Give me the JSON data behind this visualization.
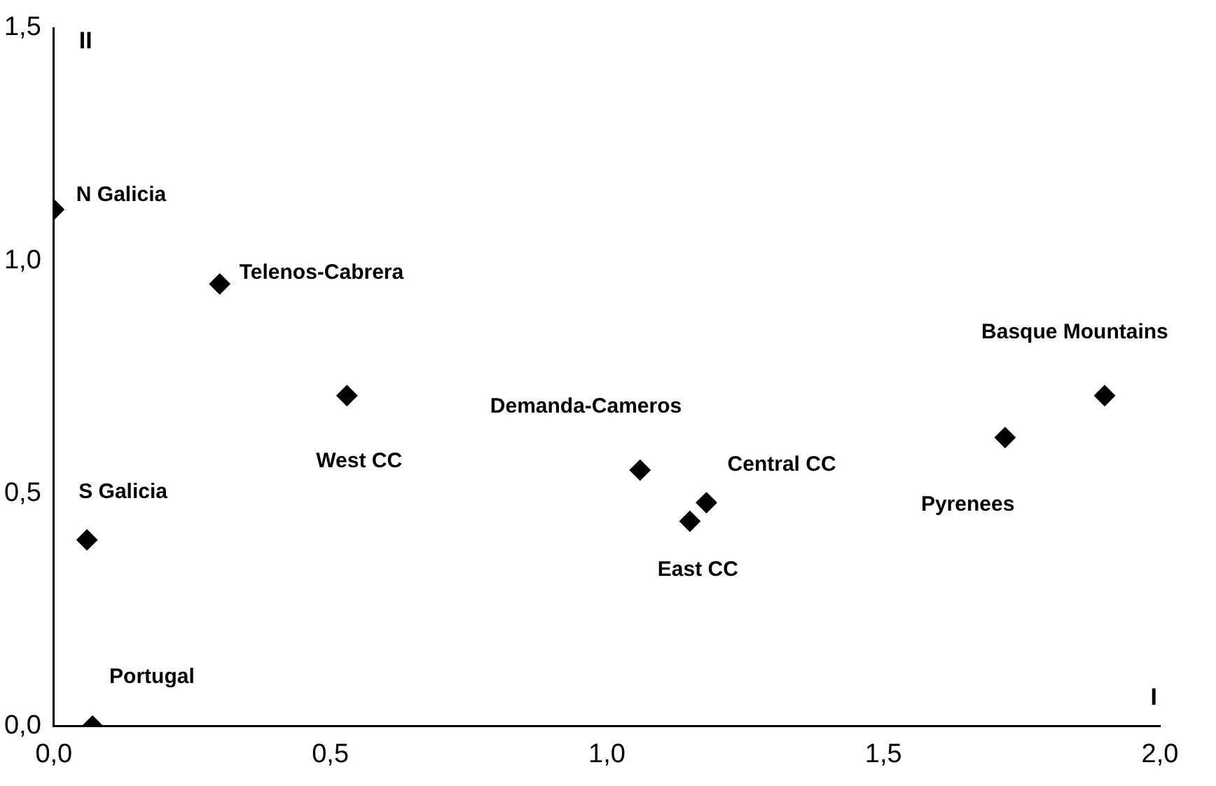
{
  "chart_data": {
    "type": "scatter",
    "xlabel": "I",
    "ylabel": "II",
    "x": [
      0,
      0.3,
      0.53,
      1.06,
      1.15,
      1.18,
      1.72,
      1.9,
      0.06,
      0.07
    ],
    "values": [
      1.11,
      0.95,
      0.71,
      0.55,
      0.44,
      0.48,
      0.62,
      0.71,
      0.4,
      0
    ],
    "color": "#000000",
    "marker": "diamond",
    "grid": false,
    "legend": false,
    "xlim": [
      0,
      2
    ],
    "ylim": [
      0,
      1.5
    ],
    "xticks": [
      {
        "value": 0,
        "label": "0,0"
      },
      {
        "value": 0.5,
        "label": "0,5"
      },
      {
        "value": 1,
        "label": "1,0"
      },
      {
        "value": 1.5,
        "label": "1,5"
      },
      {
        "value": 2,
        "label": "2,0"
      }
    ],
    "yticks": [
      {
        "value": 0,
        "label": "0,0"
      },
      {
        "value": 0.5,
        "label": "0,5"
      },
      {
        "value": 1,
        "label": "1,0"
      },
      {
        "value": 1.5,
        "label": "1,5"
      }
    ],
    "annotations": [
      {
        "text": "N Galicia",
        "x": 0,
        "y": 1.11
      },
      {
        "text": "Telenos-Cabrera",
        "x": 0.3,
        "y": 0.95
      },
      {
        "text": "West CC",
        "x": 0.53,
        "y": 0.71
      },
      {
        "text": "Demanda-Cameros",
        "x": 1.06,
        "y": 0.55
      },
      {
        "text": "East CC",
        "x": 1.15,
        "y": 0.44
      },
      {
        "text": "Central CC",
        "x": 1.18,
        "y": 0.48
      },
      {
        "text": "Pyrenees",
        "x": 1.72,
        "y": 0.62
      },
      {
        "text": "Basque Mountains",
        "x": 1.9,
        "y": 0.71
      },
      {
        "text": "S Galicia",
        "x": 0.06,
        "y": 0.4
      },
      {
        "text": "Portugal",
        "x": 0.07,
        "y": 0
      }
    ]
  }
}
